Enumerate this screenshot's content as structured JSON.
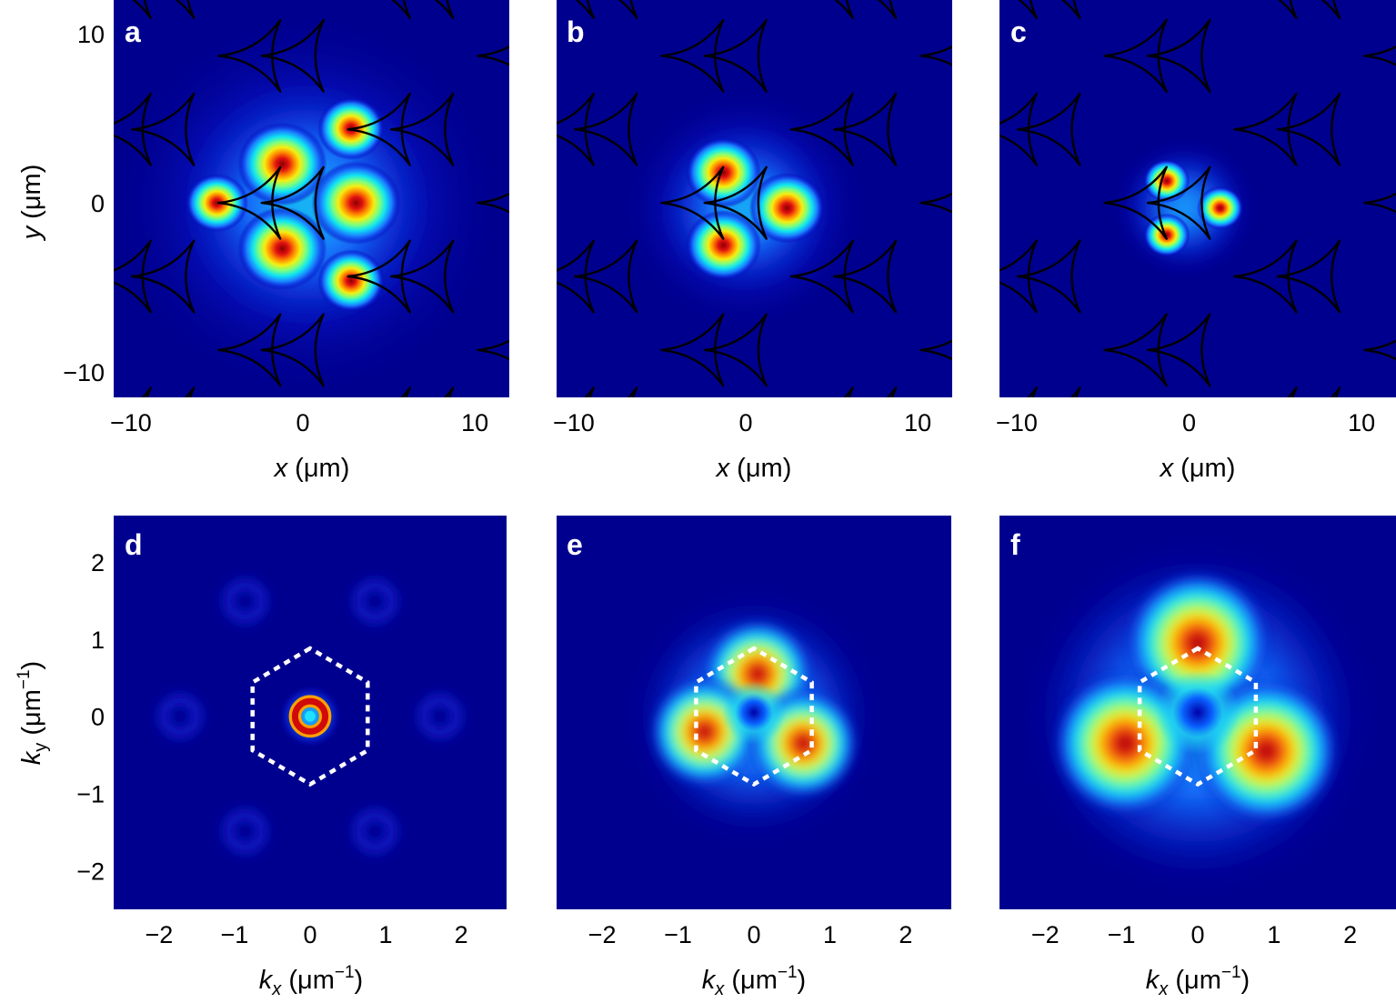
{
  "figure": {
    "panels": [
      "a",
      "b",
      "c",
      "d",
      "e",
      "f"
    ]
  },
  "chart_data": [
    {
      "type": "heatmap",
      "panel": "a",
      "space": "real",
      "xlabel": "x (μm)",
      "ylabel": "y (μm)",
      "xlim": [
        -11,
        12
      ],
      "ylim": [
        -11.5,
        12
      ],
      "xticks": [
        -10,
        0,
        10
      ],
      "yticks": [
        -10,
        0,
        10
      ],
      "xtick_labels": [
        "−10",
        "0",
        "10"
      ],
      "ytick_labels": [
        "−10",
        "0",
        "10"
      ],
      "lattice": "triangular array of three-armed pillar outlines, pitch ~8.7 μm",
      "colormap": "jet",
      "peaks": [
        {
          "x": -1.2,
          "y": 2.3,
          "amp": 1.0
        },
        {
          "x": 3.1,
          "y": 0.0,
          "amp": 1.0
        },
        {
          "x": -1.2,
          "y": -2.7,
          "amp": 1.0
        },
        {
          "x": 2.8,
          "y": 4.4,
          "amp": 0.75
        },
        {
          "x": 2.8,
          "y": -4.6,
          "amp": 0.75
        },
        {
          "x": -5.0,
          "y": 0.0,
          "amp": 0.7
        }
      ]
    },
    {
      "type": "heatmap",
      "panel": "b",
      "space": "real",
      "xlabel": "x (μm)",
      "xlim": [
        -11,
        12
      ],
      "ylim": [
        -11.5,
        12
      ],
      "xticks": [
        -10,
        0,
        10
      ],
      "xtick_labels": [
        "−10",
        "0",
        "10"
      ],
      "colormap": "jet",
      "peaks": [
        {
          "x": -1.3,
          "y": 1.8,
          "amp": 1.0
        },
        {
          "x": -1.3,
          "y": -2.5,
          "amp": 1.0
        },
        {
          "x": 2.4,
          "y": -0.3,
          "amp": 1.0
        }
      ]
    },
    {
      "type": "heatmap",
      "panel": "c",
      "space": "real",
      "xlabel": "x (μm)",
      "xlim": [
        -11,
        12
      ],
      "ylim": [
        -11.5,
        12
      ],
      "xticks": [
        -10,
        0,
        10
      ],
      "xtick_labels": [
        "−10",
        "0",
        "10"
      ],
      "colormap": "jet",
      "peaks": [
        {
          "x": -1.3,
          "y": 1.3,
          "amp": 1.0
        },
        {
          "x": -1.3,
          "y": -1.9,
          "amp": 1.0
        },
        {
          "x": 1.8,
          "y": -0.3,
          "amp": 1.0
        }
      ]
    },
    {
      "type": "heatmap",
      "panel": "d",
      "space": "momentum",
      "xlabel": "kx (μm−1)",
      "ylabel": "ky (μm−1)",
      "xlim": [
        -2.6,
        2.6
      ],
      "ylim": [
        -2.5,
        2.6
      ],
      "xticks": [
        -2,
        -1,
        0,
        1,
        2
      ],
      "yticks": [
        -2,
        -1,
        0,
        1,
        2
      ],
      "xtick_labels": [
        "−2",
        "−1",
        "0",
        "1",
        "2"
      ],
      "ytick_labels": [
        "−2",
        "−1",
        "0",
        "1",
        "2"
      ],
      "colormap": "jet",
      "brillouin_zone": "dashed hexagon, vertex radius ~0.88 μm−1",
      "ring": {
        "radius": 0.2,
        "width": 0.12
      }
    },
    {
      "type": "heatmap",
      "panel": "e",
      "space": "momentum",
      "xlabel": "kx (μm−1)",
      "xlim": [
        -2.6,
        2.6
      ],
      "ylim": [
        -2.5,
        2.6
      ],
      "xticks": [
        -2,
        -1,
        0,
        1,
        2
      ],
      "xtick_labels": [
        "−2",
        "−1",
        "0",
        "1",
        "2"
      ],
      "colormap": "jet",
      "brillouin_zone": "dashed hexagon, vertex radius ~0.88 μm−1",
      "lobes": [
        {
          "x": 0.05,
          "y": 0.55
        },
        {
          "x": -0.65,
          "y": -0.2
        },
        {
          "x": 0.65,
          "y": -0.35
        }
      ]
    },
    {
      "type": "heatmap",
      "panel": "f",
      "space": "momentum",
      "xlabel": "kx (μm−1)",
      "xlim": [
        -2.6,
        2.6
      ],
      "ylim": [
        -2.5,
        2.6
      ],
      "xticks": [
        -2,
        -1,
        0,
        1,
        2
      ],
      "xtick_labels": [
        "−2",
        "−1",
        "0",
        "1",
        "2"
      ],
      "colormap": "jet",
      "brillouin_zone": "dashed hexagon, vertex radius ~0.88 μm−1",
      "lobes": [
        {
          "x": 0.0,
          "y": 0.95
        },
        {
          "x": -0.95,
          "y": -0.35
        },
        {
          "x": 0.9,
          "y": -0.45
        }
      ]
    }
  ],
  "colors": {
    "background": "#00008f",
    "low": "#0000a0",
    "pillar_outline": "#000000",
    "panel_label": "#ffffff",
    "bz_outline": "#ffffff"
  }
}
